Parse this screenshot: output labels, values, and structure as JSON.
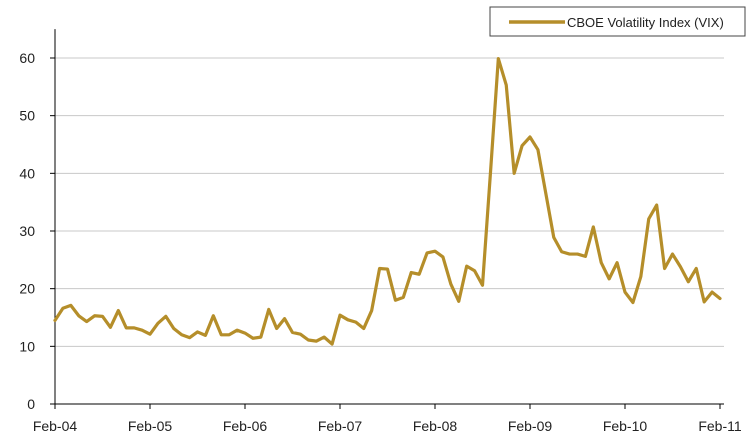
{
  "chart_data": {
    "type": "line",
    "title": "",
    "xlabel": "",
    "ylabel": "",
    "ylim": [
      0,
      65
    ],
    "yticks": [
      0,
      10,
      20,
      30,
      40,
      50,
      60
    ],
    "x_tick_labels": [
      "Feb-04",
      "Feb-05",
      "Feb-06",
      "Feb-07",
      "Feb-08",
      "Feb-09",
      "Feb-10",
      "Feb-11"
    ],
    "grid": "horizontal",
    "legend_position": "top-right",
    "series": [
      {
        "name": "CBOE Volatility Index (VIX)",
        "color": "#b58e2a",
        "values": [
          14.5,
          16.6,
          17.1,
          15.3,
          14.3,
          15.3,
          15.2,
          13.3,
          16.2,
          13.2,
          13.2,
          12.8,
          12.1,
          14.0,
          15.2,
          13.1,
          12.0,
          11.5,
          12.5,
          11.9,
          15.3,
          12.0,
          12.0,
          12.8,
          12.3,
          11.4,
          11.6,
          16.4,
          13.1,
          14.8,
          12.4,
          12.1,
          11.1,
          10.9,
          11.6,
          10.4,
          15.4,
          14.6,
          14.2,
          13.1,
          16.2,
          23.5,
          23.4,
          18.0,
          18.5,
          22.8,
          22.5,
          26.2,
          26.5,
          25.5,
          20.8,
          17.8,
          23.9,
          23.1,
          20.6,
          40.0,
          59.9,
          55.3,
          40.0,
          44.8,
          46.3,
          44.1,
          36.5,
          28.9,
          26.4,
          26.0,
          26.0,
          25.6,
          30.7,
          24.5,
          21.7,
          24.5,
          19.4,
          17.6,
          22.1,
          32.1,
          34.5,
          23.5,
          26.0,
          23.8,
          21.2,
          23.5,
          17.7,
          19.4,
          18.3
        ]
      }
    ]
  }
}
